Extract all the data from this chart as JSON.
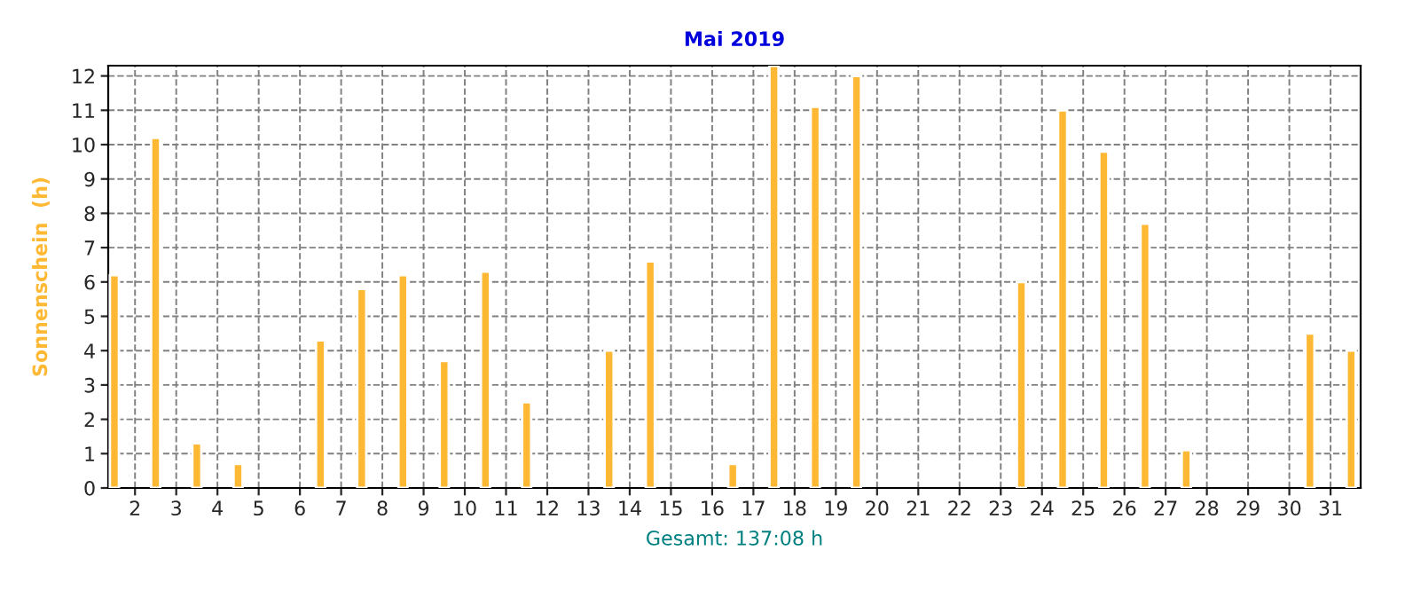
{
  "chart_data": {
    "type": "bar",
    "title": "Mai 2019",
    "ylabel": "Sonnenschein  (h)",
    "annotations": [
      "Gesamt: 137:08 h"
    ],
    "x": [
      1.5,
      2.5,
      3.5,
      4.5,
      5.5,
      6.5,
      7.5,
      8.5,
      9.5,
      10.5,
      11.5,
      12.5,
      13.5,
      14.5,
      15.5,
      16.5,
      17.5,
      18.5,
      19.5,
      20.5,
      21.5,
      22.5,
      23.5,
      24.5,
      25.5,
      26.5,
      27.5,
      28.5,
      29.5,
      30.5,
      31.5
    ],
    "values": [
      6.2,
      10.2,
      1.3,
      0.7,
      null,
      4.3,
      5.8,
      6.2,
      3.7,
      6.3,
      2.5,
      null,
      4.0,
      6.6,
      null,
      0.7,
      12.3,
      11.1,
      12.0,
      null,
      null,
      null,
      6.0,
      11.0,
      9.8,
      7.7,
      1.1,
      null,
      null,
      4.5,
      4.0
    ],
    "color": "#ffb833",
    "xlim": [
      1.35,
      31.73
    ],
    "xticks": [
      2,
      3,
      4,
      5,
      6,
      7,
      8,
      9,
      10,
      11,
      12,
      13,
      14,
      15,
      16,
      17,
      18,
      19,
      20,
      21,
      22,
      23,
      24,
      25,
      26,
      27,
      28,
      29,
      30,
      31
    ],
    "ylim": [
      0,
      12.3
    ],
    "yticks": [
      0,
      1,
      2,
      3,
      4,
      5,
      6,
      7,
      8,
      9,
      10,
      11,
      12
    ],
    "grid": true
  }
}
